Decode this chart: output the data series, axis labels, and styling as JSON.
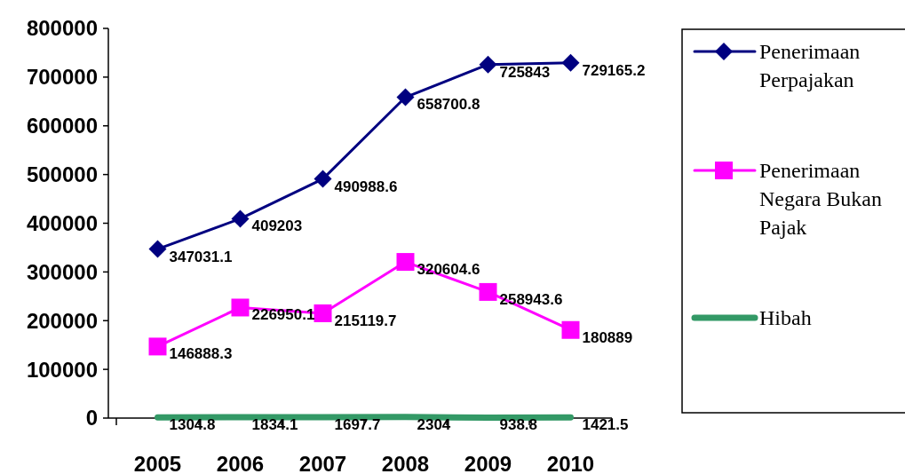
{
  "chart_data": {
    "type": "line",
    "categories": [
      "2005",
      "2006",
      "2007",
      "2008",
      "2009",
      "2010"
    ],
    "ylim": [
      0,
      800000
    ],
    "yticks": [
      0,
      100000,
      200000,
      300000,
      400000,
      500000,
      600000,
      700000,
      800000
    ],
    "grid": false,
    "legend": "right",
    "data_labels": true,
    "series": [
      {
        "name": "Penerimaan Perpajakan",
        "color": "#000080",
        "marker": "diamond",
        "values": [
          347031.1,
          409203,
          490988.6,
          658700.8,
          725843,
          729165.2
        ]
      },
      {
        "name": "Penerimaan Negara Bukan Pajak",
        "color": "#ff00ff",
        "marker": "square",
        "values": [
          146888.3,
          226950.1,
          215119.7,
          320604.6,
          258943.6,
          180889
        ]
      },
      {
        "name": "Hibah",
        "color": "#339966",
        "marker": "none",
        "values": [
          1304.8,
          1834.1,
          1697.7,
          2304,
          938.8,
          1421.5
        ]
      }
    ]
  }
}
